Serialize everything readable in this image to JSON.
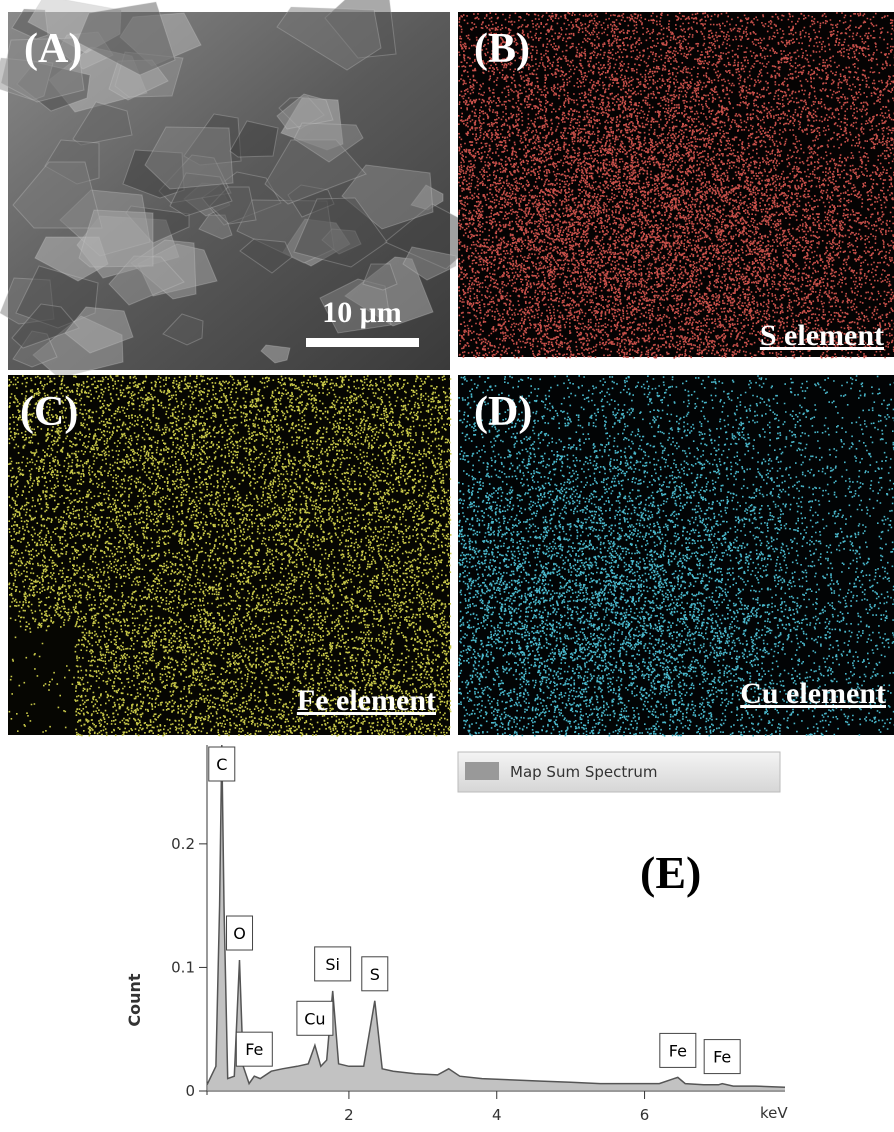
{
  "panels": [
    {
      "label": "(A)",
      "scale_bar": "10 μm"
    },
    {
      "label": "(B)",
      "caption": "S element"
    },
    {
      "label": "(C)",
      "caption": "Fe element"
    },
    {
      "label": "(D)",
      "caption": "Cu element"
    }
  ],
  "chart_data": {
    "type": "area",
    "panel_label": "(E)",
    "ylabel": "Count",
    "xlabel": "keV",
    "x": [
      0.08,
      0.2,
      0.25,
      0.28,
      0.31,
      0.36,
      0.45,
      0.52,
      0.57,
      0.65,
      0.72,
      0.8,
      0.95,
      1.1,
      1.3,
      1.45,
      1.54,
      1.62,
      1.7,
      1.78,
      1.86,
      2.0,
      2.2,
      2.35,
      2.45,
      2.6,
      2.9,
      3.2,
      3.35,
      3.5,
      3.8,
      4.2,
      4.6,
      5.0,
      5.4,
      5.8,
      6.2,
      6.4,
      6.45,
      6.55,
      6.8,
      7.0,
      7.05,
      7.2,
      7.5,
      7.9
    ],
    "series": [
      {
        "name": "Map Sum Spectrum",
        "color": "#999999",
        "values": [
          0.005,
          0.02,
          0.15,
          0.28,
          0.15,
          0.01,
          0.012,
          0.106,
          0.02,
          0.006,
          0.012,
          0.01,
          0.016,
          0.018,
          0.02,
          0.022,
          0.037,
          0.02,
          0.025,
          0.081,
          0.022,
          0.02,
          0.02,
          0.073,
          0.018,
          0.016,
          0.014,
          0.013,
          0.018,
          0.012,
          0.01,
          0.009,
          0.008,
          0.007,
          0.006,
          0.006,
          0.006,
          0.01,
          0.011,
          0.006,
          0.005,
          0.005,
          0.006,
          0.004,
          0.004,
          0.003
        ]
      }
    ],
    "xlim": [
      0.08,
      7.9
    ],
    "ylim": [
      0,
      0.28
    ],
    "xticks": [
      2,
      4,
      6
    ],
    "yticks": [
      0,
      0.1,
      0.2
    ],
    "annotations": [
      {
        "text": "C",
        "x": 0.28
      },
      {
        "text": "O",
        "x": 0.52
      },
      {
        "text": "Fe",
        "x": 0.72
      },
      {
        "text": "Cu",
        "x": 1.54
      },
      {
        "text": "Si",
        "x": 1.78
      },
      {
        "text": "S",
        "x": 2.35
      },
      {
        "text": "Fe",
        "x": 6.45
      },
      {
        "text": "Fe",
        "x": 7.05
      }
    ]
  }
}
